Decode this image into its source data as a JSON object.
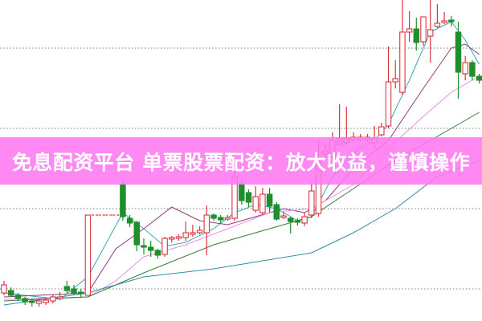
{
  "banner": {
    "text": "免息配资平台 单票股票配资：放大收益，谨慎操作"
  },
  "chart_data": {
    "type": "candlestick",
    "title": "",
    "grid": true,
    "ylim": [
      0,
      40
    ],
    "gridlines": [
      4,
      14,
      24,
      34
    ],
    "colors": {
      "up": "#d9363e",
      "down": "#1f8f2c",
      "ma5": "#3aa6b5",
      "ma10": "#8e3a7c",
      "ma20": "#ea8fe4",
      "ma30": "#3d7a3a",
      "ma60": "#2c8ea6",
      "banner": "#ff78f0"
    },
    "candles": [
      [
        3.5,
        5.0,
        3.2,
        4.5
      ],
      [
        3.8,
        4.2,
        3.0,
        3.2
      ],
      [
        3.2,
        3.5,
        2.5,
        2.8
      ],
      [
        2.8,
        3.0,
        2.0,
        2.4
      ],
      [
        2.5,
        2.8,
        1.8,
        2.3
      ],
      [
        2.2,
        2.8,
        1.8,
        2.5
      ],
      [
        2.3,
        3.0,
        2.0,
        2.6
      ],
      [
        2.5,
        3.3,
        2.2,
        3.0
      ],
      [
        2.8,
        3.6,
        2.6,
        3.0
      ],
      [
        4.3,
        5.0,
        3.5,
        3.8
      ],
      [
        4.0,
        4.5,
        3.2,
        3.5
      ],
      [
        3.6,
        4.0,
        3.0,
        3.4
      ],
      [
        3.2,
        13.2,
        3.2,
        13.2
      ],
      [
        13.2,
        13.2,
        13.2,
        13.2
      ],
      [
        13.2,
        13.2,
        13.2,
        13.2
      ],
      [
        13.2,
        13.2,
        13.2,
        13.2
      ],
      [
        13.2,
        13.2,
        13.2,
        13.2
      ],
      [
        17.0,
        17.4,
        12.5,
        13.0
      ],
      [
        12.8,
        13.2,
        11.7,
        12.2
      ],
      [
        12.3,
        12.5,
        8.7,
        9.5
      ],
      [
        9.4,
        10.3,
        8.3,
        9.2
      ],
      [
        9.2,
        10.0,
        8.0,
        8.8
      ],
      [
        8.8,
        9.0,
        7.8,
        8.2
      ],
      [
        8.3,
        10.5,
        8.0,
        10.3
      ],
      [
        10.2,
        10.6,
        9.8,
        10.4
      ],
      [
        10.3,
        10.8,
        10.0,
        10.5
      ],
      [
        10.4,
        12.4,
        10.0,
        11.0
      ],
      [
        10.8,
        12.0,
        10.5,
        11.0
      ],
      [
        11.0,
        11.8,
        10.8,
        11.3
      ],
      [
        11.0,
        14.4,
        8.2,
        13.2
      ],
      [
        13.2,
        13.4,
        12.5,
        12.8
      ],
      [
        12.9,
        13.2,
        12.2,
        12.6
      ],
      [
        12.7,
        13.2,
        12.5,
        12.9
      ],
      [
        12.8,
        18.8,
        12.5,
        18.0
      ],
      [
        17.0,
        17.5,
        14.5,
        15.0
      ],
      [
        16.0,
        16.4,
        14.2,
        14.8
      ],
      [
        13.8,
        16.8,
        13.5,
        15.5
      ],
      [
        13.5,
        16.6,
        13.2,
        15.8
      ],
      [
        15.8,
        16.6,
        13.5,
        14.3
      ],
      [
        14.5,
        14.8,
        12.5,
        12.7
      ],
      [
        12.9,
        13.6,
        12.7,
        13.1
      ],
      [
        12.8,
        13.0,
        10.9,
        12.4
      ],
      [
        12.5,
        12.8,
        11.9,
        12.3
      ],
      [
        12.2,
        13.5,
        11.8,
        13.0
      ],
      [
        13.2,
        17.2,
        12.8,
        16.2
      ],
      [
        13.4,
        22.5,
        13.0,
        20.0
      ],
      [
        20.8,
        22.0,
        20.0,
        21.2
      ],
      [
        20.5,
        23.5,
        20.0,
        22.5
      ],
      [
        22.0,
        27.0,
        22.0,
        22.8
      ],
      [
        22.2,
        26.7,
        21.8,
        22.8
      ],
      [
        22.6,
        23.5,
        22.3,
        22.9
      ],
      [
        22.6,
        23.3,
        22.3,
        22.9
      ],
      [
        22.6,
        23.3,
        22.3,
        22.9
      ],
      [
        22.2,
        24.3,
        21.5,
        22.8
      ],
      [
        23.2,
        24.7,
        23.0,
        24.2
      ],
      [
        24.3,
        34.2,
        24.0,
        29.8
      ],
      [
        29.8,
        32.5,
        29.0,
        30.2
      ],
      [
        28.5,
        40.0,
        28.2,
        36.0
      ],
      [
        36.0,
        38.6,
        34.8,
        36.4
      ],
      [
        36.4,
        37.8,
        33.7,
        34.7
      ],
      [
        34.8,
        37.9,
        34.3,
        37.9
      ],
      [
        35.5,
        40.0,
        32.2,
        36.3
      ],
      [
        36.7,
        39.5,
        36.5,
        37.1
      ],
      [
        37.2,
        38.5,
        37.0,
        37.4
      ],
      [
        37.5,
        38.0,
        36.7,
        37.3
      ],
      [
        36.0,
        37.3,
        27.7,
        31.0
      ],
      [
        30.8,
        33.0,
        30.0,
        32.2
      ],
      [
        32.2,
        32.5,
        30.0,
        30.5
      ],
      [
        30.5,
        30.8,
        29.6,
        30.0
      ]
    ],
    "moving_averages": [
      {
        "key": "ma5",
        "points": [
          [
            0,
            3.5
          ],
          [
            8,
            2.7
          ],
          [
            12,
            5.5
          ],
          [
            17,
            13.5
          ],
          [
            20,
            11.5
          ],
          [
            23,
            9.3
          ],
          [
            26,
            9.8
          ],
          [
            30,
            11.5
          ],
          [
            33,
            13.5
          ],
          [
            36,
            14.5
          ],
          [
            39,
            14.0
          ],
          [
            42,
            12.5
          ],
          [
            44,
            13.0
          ],
          [
            47,
            18.0
          ],
          [
            50,
            21.0
          ],
          [
            53,
            22.5
          ],
          [
            55,
            24.5
          ],
          [
            58,
            30.0
          ],
          [
            61,
            36.0
          ],
          [
            64,
            37.3
          ],
          [
            66,
            35.0
          ],
          [
            68,
            32.0
          ]
        ]
      },
      {
        "key": "ma10",
        "points": [
          [
            0,
            3.0
          ],
          [
            12,
            3.5
          ],
          [
            16,
            9.0
          ],
          [
            20,
            11.5
          ],
          [
            24,
            14.2
          ],
          [
            28,
            12.5
          ],
          [
            32,
            12.0
          ],
          [
            36,
            13.0
          ],
          [
            40,
            14.0
          ],
          [
            43,
            13.5
          ],
          [
            46,
            15.0
          ],
          [
            50,
            19.0
          ],
          [
            55,
            22.5
          ],
          [
            60,
            29.0
          ],
          [
            64,
            34.0
          ],
          [
            66,
            34.5
          ],
          [
            68,
            33.2
          ]
        ]
      },
      {
        "key": "ma20",
        "points": [
          [
            0,
            2.7
          ],
          [
            12,
            3.0
          ],
          [
            16,
            5.0
          ],
          [
            20,
            8.0
          ],
          [
            26,
            9.5
          ],
          [
            32,
            11.5
          ],
          [
            38,
            13.5
          ],
          [
            44,
            14.0
          ],
          [
            50,
            17.0
          ],
          [
            55,
            21.5
          ],
          [
            60,
            25.5
          ],
          [
            64,
            28.5
          ],
          [
            68,
            30.5
          ]
        ]
      },
      {
        "key": "ma30",
        "points": [
          [
            0,
            2.5
          ],
          [
            12,
            3.0
          ],
          [
            20,
            6.0
          ],
          [
            30,
            9.5
          ],
          [
            38,
            11.5
          ],
          [
            44,
            13.0
          ],
          [
            50,
            16.5
          ],
          [
            56,
            20.0
          ],
          [
            62,
            23.0
          ],
          [
            68,
            26.0
          ]
        ]
      },
      {
        "key": "ma60",
        "points": [
          [
            0,
            2.0
          ],
          [
            12,
            3.5
          ],
          [
            20,
            5.5
          ],
          [
            30,
            6.5
          ],
          [
            44,
            8.5
          ],
          [
            50,
            11.0
          ],
          [
            56,
            14.0
          ],
          [
            62,
            18.0
          ],
          [
            68,
            20.0
          ]
        ]
      }
    ]
  }
}
